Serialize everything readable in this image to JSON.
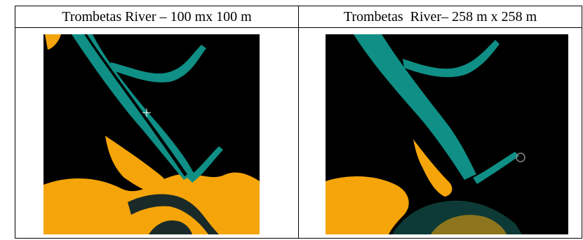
{
  "table": {
    "left_header": "Trombetas River – 100 mx 100 m",
    "right_header": "Trombetas  River– 258 m x 258 m"
  },
  "colors": {
    "background": "#000000",
    "water": "#0f8f86",
    "land": "#f5a50a",
    "dark_channel": "#1a2a28"
  }
}
